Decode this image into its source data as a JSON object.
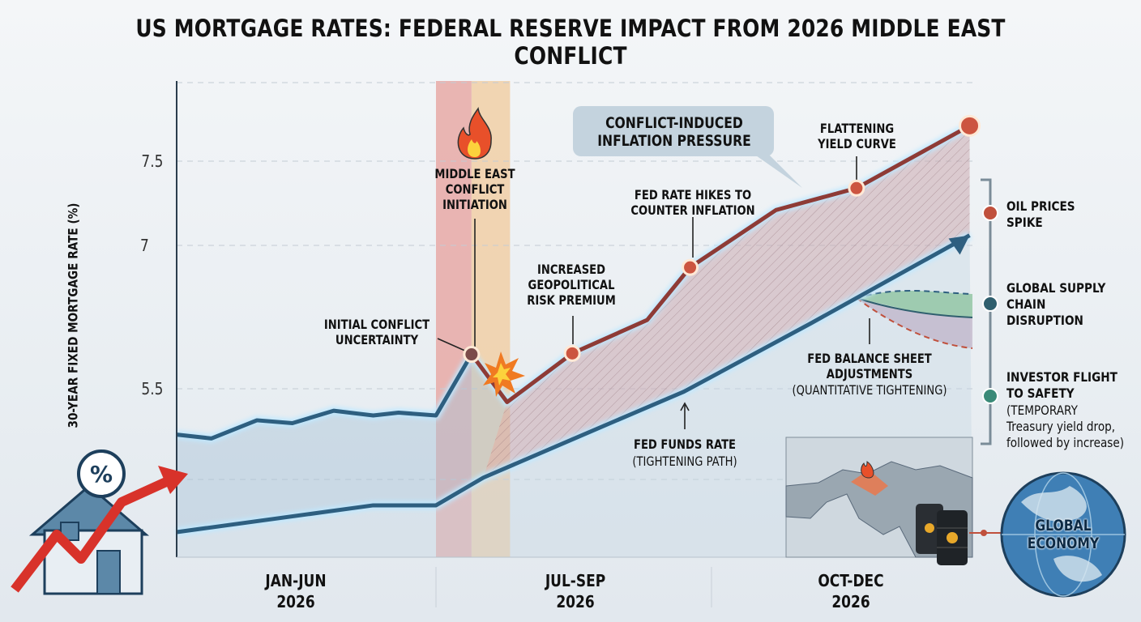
{
  "title": "US MORTGAGE RATES: FEDERAL RESERVE IMPACT FROM 2026 MIDDLE EAST CONFLICT",
  "chart_data": {
    "type": "line",
    "title": "US MORTGAGE RATES: FEDERAL RESERVE IMPACT FROM 2026 MIDDLE EAST CONFLICT",
    "ylabel": "30-YEAR FIXED MORTGAGE RATE (%)",
    "xlabel": "",
    "yticks": [
      7.5,
      7.0,
      5.5
    ],
    "x_categories": [
      "JAN-JUN\n2026",
      "JUL-SEP\n2026",
      "OCT-DEC\n2026"
    ],
    "grid": true,
    "series": [
      {
        "id": "mortgage",
        "colors": {
          "pre_conflict": "#2e5f80",
          "post_conflict": "#8e3b36"
        },
        "points": [
          {
            "x": "2026-01-01",
            "y": 5.02
          },
          {
            "x": "2026-01-26",
            "y": 4.98
          },
          {
            "x": "2026-02-25",
            "y": 5.17
          },
          {
            "x": "2026-03-22",
            "y": 5.14
          },
          {
            "x": "2026-04-20",
            "y": 5.27
          },
          {
            "x": "2026-05-18",
            "y": 5.22
          },
          {
            "x": "2026-06-05",
            "y": 5.25
          },
          {
            "x": "2026-07-01",
            "y": 5.22
          },
          {
            "x": "2026-07-13",
            "y": 5.86,
            "label": "INITIAL CONFLICT\nUNCERTAINTY"
          },
          {
            "x": "2026-07-25",
            "y": 5.36
          },
          {
            "x": "2026-08-16",
            "y": 5.87,
            "label": "INCREASED\nGEOPOLITICAL\nRISK PREMIUM"
          },
          {
            "x": "2026-09-10",
            "y": 6.22
          },
          {
            "x": "2026-09-24",
            "y": 6.77,
            "label": "FED RATE HIKES TO\nCOUNTER INFLATION"
          },
          {
            "x": "2026-10-24",
            "y": 7.21
          },
          {
            "x": "2026-11-21",
            "y": 7.34,
            "label": "FLATTENING\nYIELD CURVE"
          },
          {
            "x": "2026-12-31",
            "y": 7.71
          }
        ]
      },
      {
        "id": "fed_funds",
        "name": "FED FUNDS RATE",
        "color": "#2e5f80",
        "points": [
          {
            "x": "2026-01-01",
            "y": 4.0
          },
          {
            "x": "2026-05-18",
            "y": 4.28
          },
          {
            "x": "2026-07-01",
            "y": 4.28
          },
          {
            "x": "2026-07-17",
            "y": 4.57
          },
          {
            "x": "2026-08-16",
            "y": 4.97
          },
          {
            "x": "2026-09-22",
            "y": 5.47
          },
          {
            "x": "2026-11-05",
            "y": 6.18
          },
          {
            "x": "2026-12-31",
            "y": 7.06
          }
        ]
      }
    ],
    "bands": [
      {
        "from": "2026-07-01",
        "to": "2026-07-13",
        "color": "#e8a9a6"
      },
      {
        "from": "2026-07-13",
        "to": "2026-07-26",
        "color": "#f1cfa6"
      }
    ],
    "annotations": {
      "conflict": "MIDDLE EAST\nCONFLICT\nINITIATION",
      "inflation": "CONFLICT-INDUCED\nINFLATION PRESSURE",
      "fed_funds": "FED FUNDS RATE",
      "fed_funds_sub": "(TIGHTENING PATH)",
      "balance_sheet": "FED BALANCE SHEET\nADJUSTMENTS",
      "balance_sheet_sub": "(QUANTITATIVE TIGHTENING)"
    }
  },
  "side_factors": [
    {
      "label": "OIL PRICES\nSPIKE",
      "color": "#c0503c"
    },
    {
      "label": "GLOBAL SUPPLY\nCHAIN\nDISRUPTION",
      "color": "#2f5f6e"
    },
    {
      "label": "INVESTOR FLIGHT\nTO SAFETY",
      "sub": "(TEMPORARY\nTreasury yield drop,\nfollowed by increase)",
      "color": "#3a8a78"
    }
  ],
  "globe_label": "GLOBAL\nECONOMY",
  "icons": [
    "house-percent-icon",
    "trend-arrow-icon",
    "fire-icon",
    "explosion-icon",
    "middle-east-map-icon",
    "oil-barrel-icon",
    "globe-icon"
  ]
}
